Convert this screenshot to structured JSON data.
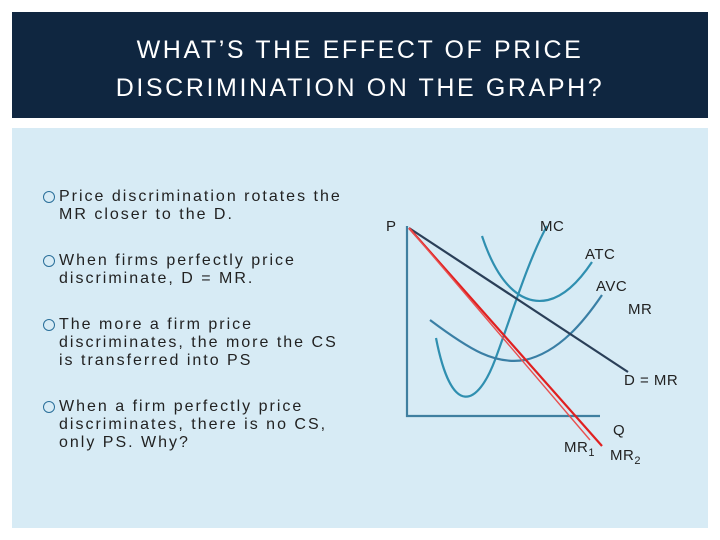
{
  "header": {
    "title_lines": [
      "WHAT’S THE EFFECT OF PRICE",
      "DISCRIMINATION ON THE GRAPH?"
    ]
  },
  "bullets": [
    "Price discrimination rotates the MR closer to the D.",
    "When firms perfectly price discriminate, D = MR.",
    "The more a firm price discriminates, the more the CS is transferred into PS",
    "When a firm perfectly price discriminates, there is no CS, only PS. Why?"
  ],
  "diagram": {
    "labels": {
      "p": "P",
      "mc": "MC",
      "atc": "ATC",
      "avc": "AVC",
      "mr": "MR",
      "d": "D = MR",
      "q": "Q",
      "mr1": {
        "text": "MR",
        "sub": "1"
      },
      "mr2": {
        "text": "MR",
        "sub": "2"
      }
    }
  }
}
